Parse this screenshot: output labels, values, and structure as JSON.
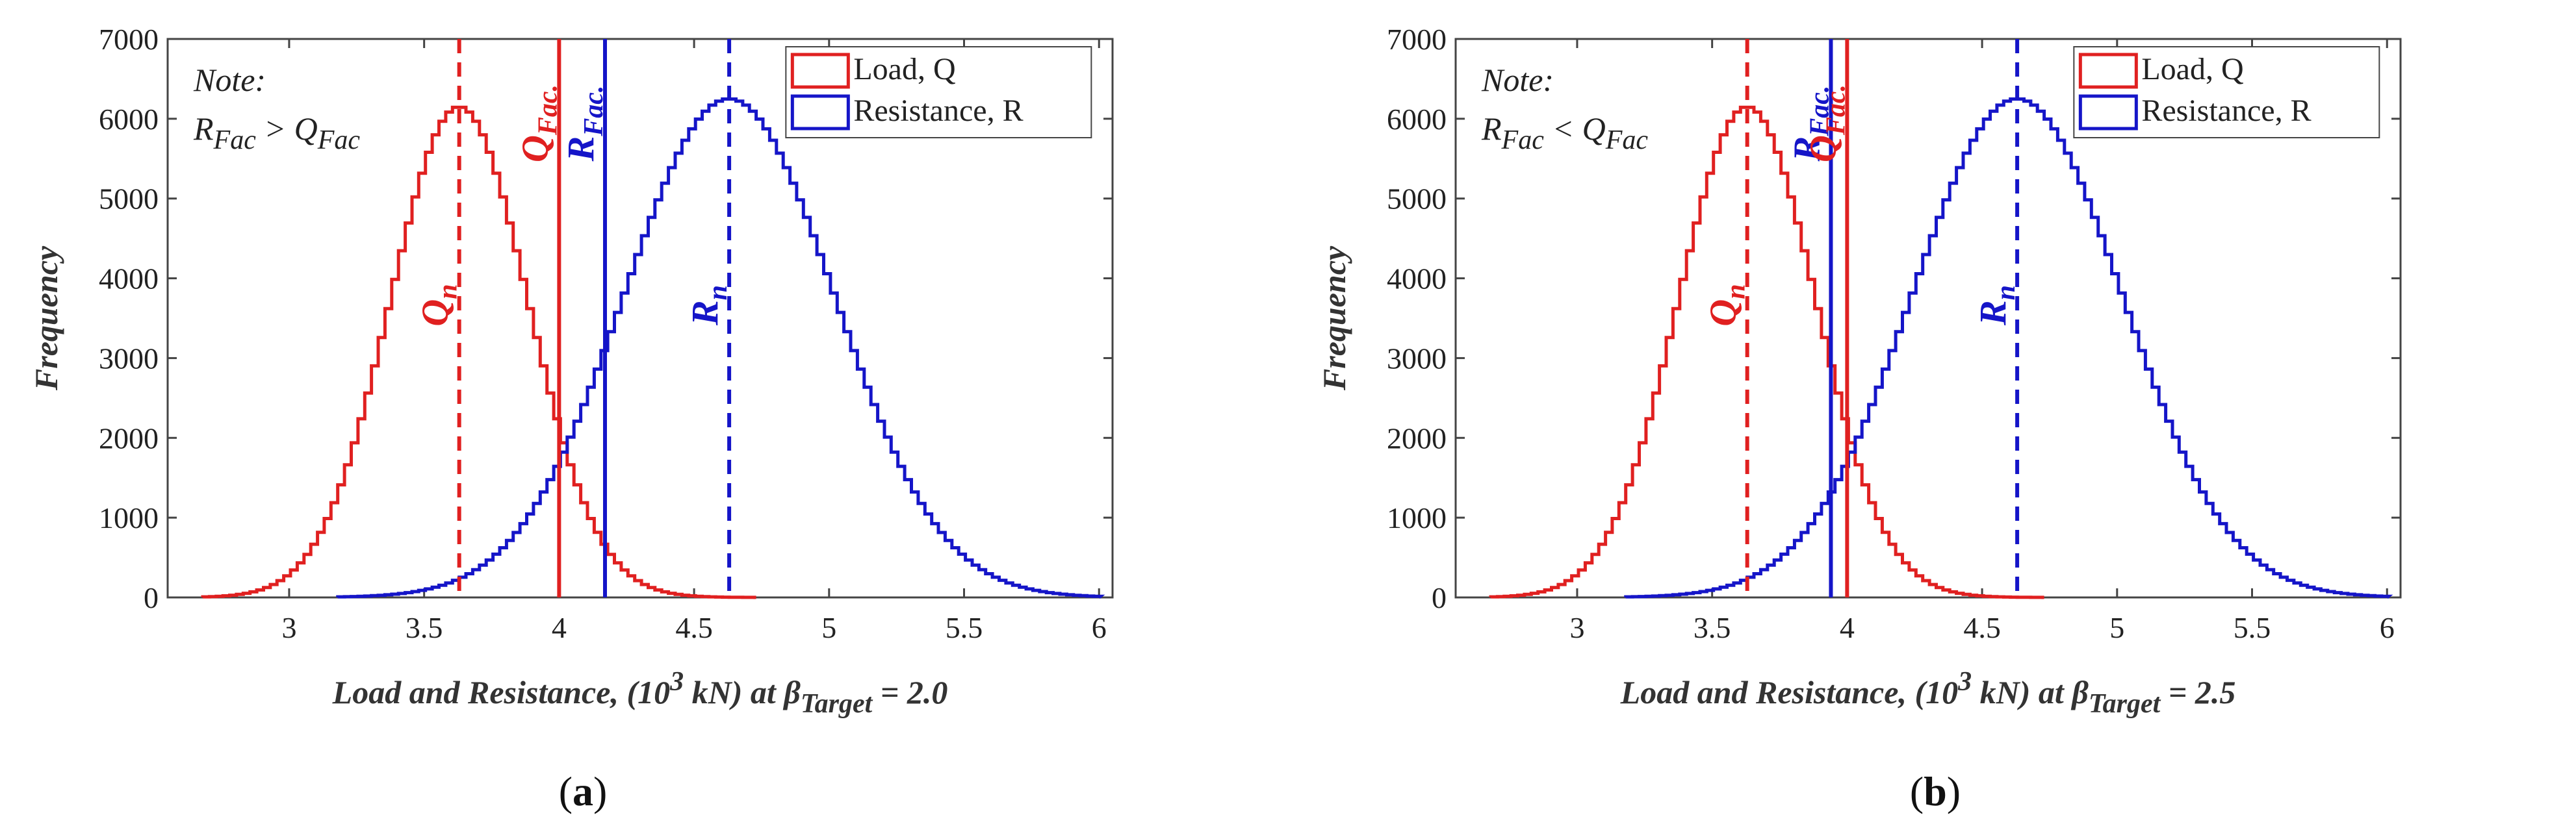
{
  "chart_data": [
    {
      "panel": "a",
      "type": "histogram",
      "caption_open": "(",
      "caption_letter": "a",
      "caption_close": ")",
      "xlabel_pre": "Load and Resistance, (10",
      "xlabel_sup": "3",
      "xlabel_mid": " kN) at ",
      "xlabel_beta": "β",
      "xlabel_sub": "Target",
      "xlabel_post": " = 2.0",
      "ylabel": "Frequency",
      "xlim": [
        2.55,
        6.05
      ],
      "ylim": [
        0,
        7000
      ],
      "xticks": [
        "3",
        "3.5",
        "4",
        "4.5",
        "5",
        "5.5",
        "6"
      ],
      "xtick_values": [
        3,
        3.5,
        4,
        4.5,
        5,
        5.5,
        6
      ],
      "yticks": [
        "0",
        "1000",
        "2000",
        "3000",
        "4000",
        "5000",
        "6000",
        "7000"
      ],
      "ytick_values": [
        0,
        1000,
        2000,
        3000,
        4000,
        5000,
        6000,
        7000
      ],
      "legend": [
        "Load, Q",
        "Resistance, R"
      ],
      "note": {
        "line1": "Note:",
        "lhs": "R",
        "lhs_sub": "Fac",
        "op": " > ",
        "rhs": "Q",
        "rhs_sub": "Fac"
      },
      "series": [
        {
          "name": "Load, Q",
          "color": "#e02020",
          "mean": 3.63,
          "sd": 0.255,
          "peak": 6150,
          "xmin": 2.68,
          "xmax": 4.72
        },
        {
          "name": "Resistance, R",
          "color": "#1515c8",
          "mean": 4.63,
          "sd": 0.39,
          "peak": 6250,
          "xmin": 3.18,
          "xmax": 6.0
        }
      ],
      "lines": [
        {
          "label": "Q",
          "sub": "n",
          "x": 3.63,
          "color": "#e02020",
          "style": "dashed"
        },
        {
          "label": "Q",
          "sub": "Fac.",
          "x": 4.0,
          "color": "#e02020",
          "style": "solid"
        },
        {
          "label": "R",
          "sub": "Fac.",
          "x": 4.17,
          "color": "#1515c8",
          "style": "solid"
        },
        {
          "label": "R",
          "sub": "n",
          "x": 4.63,
          "color": "#1515c8",
          "style": "dashed"
        }
      ]
    },
    {
      "panel": "b",
      "type": "histogram",
      "caption_open": "(",
      "caption_letter": "b",
      "caption_close": ")",
      "xlabel_pre": "Load and Resistance, (10",
      "xlabel_sup": "3",
      "xlabel_mid": " kN) at ",
      "xlabel_beta": "β",
      "xlabel_sub": "Target",
      "xlabel_post": " = 2.5",
      "ylabel": "Frequency",
      "xlim": [
        2.55,
        6.05
      ],
      "ylim": [
        0,
        7000
      ],
      "xticks": [
        "3",
        "3.5",
        "4",
        "4.5",
        "5",
        "5.5",
        "6"
      ],
      "xtick_values": [
        3,
        3.5,
        4,
        4.5,
        5,
        5.5,
        6
      ],
      "yticks": [
        "0",
        "1000",
        "2000",
        "3000",
        "4000",
        "5000",
        "6000",
        "7000"
      ],
      "ytick_values": [
        0,
        1000,
        2000,
        3000,
        4000,
        5000,
        6000,
        7000
      ],
      "legend": [
        "Load, Q",
        "Resistance, R"
      ],
      "note": {
        "line1": "Note:",
        "lhs": "R",
        "lhs_sub": "Fac",
        "op": " < ",
        "rhs": "Q",
        "rhs_sub": "Fac"
      },
      "series": [
        {
          "name": "Load, Q",
          "color": "#e02020",
          "mean": 3.63,
          "sd": 0.255,
          "peak": 6150,
          "xmin": 2.68,
          "xmax": 4.72
        },
        {
          "name": "Resistance, R",
          "color": "#1515c8",
          "mean": 4.63,
          "sd": 0.39,
          "peak": 6250,
          "xmin": 3.18,
          "xmax": 6.0
        }
      ],
      "lines": [
        {
          "label": "Q",
          "sub": "n",
          "x": 3.63,
          "color": "#e02020",
          "style": "dashed"
        },
        {
          "label": "R",
          "sub": "Fac.",
          "x": 3.94,
          "color": "#1515c8",
          "style": "solid"
        },
        {
          "label": "Q",
          "sub": "Fac.",
          "x": 4.0,
          "color": "#e02020",
          "style": "solid"
        },
        {
          "label": "R",
          "sub": "n",
          "x": 4.63,
          "color": "#1515c8",
          "style": "dashed"
        }
      ]
    }
  ]
}
